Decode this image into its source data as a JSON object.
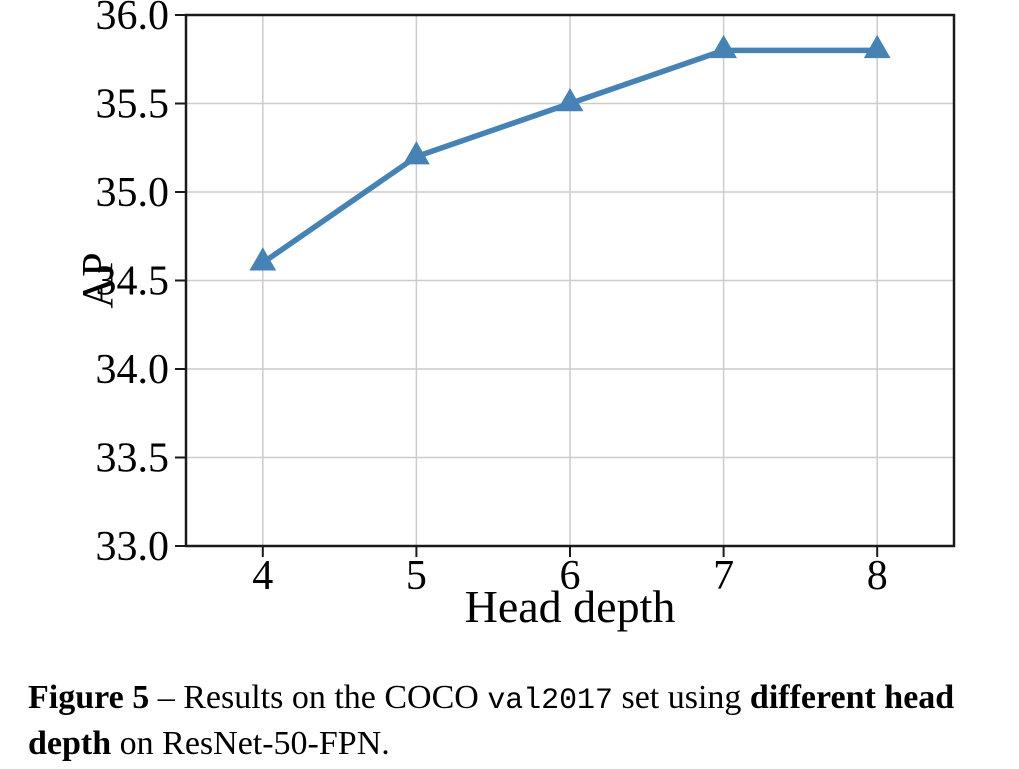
{
  "figure": {
    "caption": {
      "line1": {
        "label": "Figure 5",
        "dash_text": " – Results on the COCO ",
        "code": "val2017",
        "mid": " set using ",
        "bold_tail": "different head"
      },
      "line2": {
        "bold_head": "depth",
        "tail": " on ResNet-50-FPN."
      }
    }
  },
  "chart_data": {
    "type": "line",
    "title": "",
    "xlabel": "Head depth",
    "ylabel": "AP",
    "x": [
      4,
      5,
      6,
      7,
      8
    ],
    "series": [
      {
        "name": "AP",
        "values": [
          34.6,
          35.2,
          35.5,
          35.8,
          35.8
        ]
      }
    ],
    "xlim": [
      3.5,
      8.5
    ],
    "ylim": [
      33.0,
      36.0
    ],
    "xticks": {
      "values": [
        4,
        5,
        6,
        7,
        8
      ],
      "labels": [
        "4",
        "5",
        "6",
        "7",
        "8"
      ]
    },
    "yticks": {
      "values": [
        33.0,
        33.5,
        34.0,
        34.5,
        35.0,
        35.5,
        36.0
      ],
      "labels": [
        "33.0",
        "33.5",
        "34.0",
        "34.5",
        "35.0",
        "35.5",
        "36.0"
      ]
    },
    "grid": true,
    "legend": "none",
    "marker": "triangle-up",
    "line_color": "#4682b4",
    "marker_color": "#4682b4",
    "grid_color": "#cccccc",
    "axis_color": "#1a1a1a",
    "text_color": "#000000"
  }
}
